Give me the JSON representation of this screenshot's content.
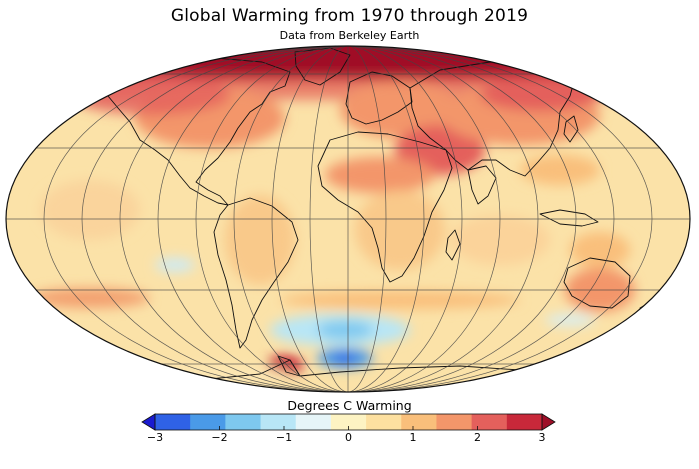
{
  "header": {
    "title": "Global Warming from 1970 through 2019",
    "subtitle": "Data from Berkeley Earth"
  },
  "colorbar": {
    "title": "Degrees C Warming",
    "min": -3,
    "max": 3,
    "tick_labels": [
      "−3",
      "−2",
      "−1",
      "0",
      "1",
      "2",
      "3"
    ],
    "tick_values": [
      -3,
      -2,
      -1,
      0,
      1,
      2,
      3
    ],
    "colors": [
      "#1a1ad0",
      "#2f62e6",
      "#4a9ae8",
      "#7ec8ef",
      "#b8e6f6",
      "#e6f5f8",
      "#fdf3c3",
      "#fde0a0",
      "#f9bf7b",
      "#f3966a",
      "#e4605c",
      "#c8283a",
      "#9e0f28"
    ]
  },
  "map": {
    "projection": "mollweide",
    "land_color": "#f9d292",
    "ocean_base_color": "#fbe4ad",
    "graticule_color": "#444444"
  }
}
